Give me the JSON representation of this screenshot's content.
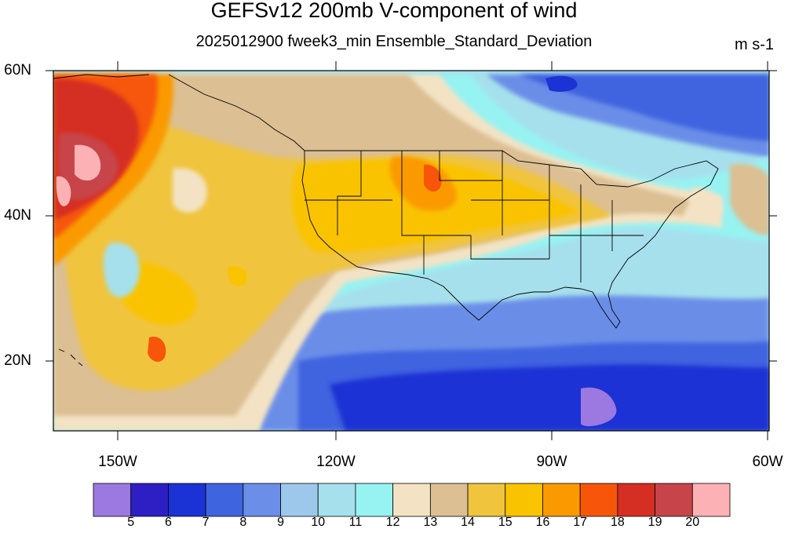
{
  "title": "GEFSv12 200mb V-component of wind",
  "subtitle": "2025012900 fweek3_min Ensemble_Standard_Deviation",
  "units": "m s-1",
  "lat_labels": [
    "60N",
    "40N",
    "20N"
  ],
  "lon_labels": [
    "150W",
    "120W",
    "90W",
    "60W"
  ],
  "colorbar": {
    "levels": [
      "5",
      "6",
      "7",
      "8",
      "9",
      "10",
      "11",
      "12",
      "13",
      "14",
      "15",
      "16",
      "17",
      "18",
      "19",
      "20"
    ],
    "colors": [
      "#9c79e0",
      "#2d1fc4",
      "#1b32d4",
      "#3f64e0",
      "#6b8ee8",
      "#9dc8ec",
      "#a6e0ec",
      "#97f2f2",
      "#f3e3c4",
      "#dcbf93",
      "#f0c43c",
      "#fac300",
      "#fa9a00",
      "#f7560a",
      "#d52e22",
      "#c7444a",
      "#fcb1b5"
    ]
  },
  "map_extent": {
    "lon": [
      -160,
      -60
    ],
    "lat": [
      10,
      60
    ]
  }
}
